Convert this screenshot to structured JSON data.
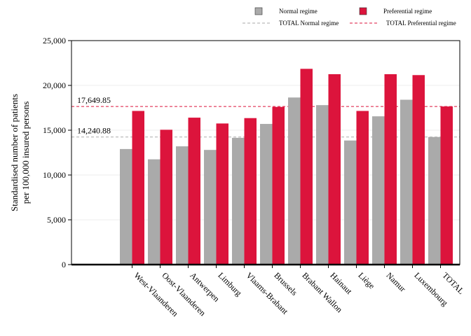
{
  "chart_data": {
    "type": "bar",
    "title": "",
    "ylabel": "Standardised number of patients\nper 100,000 insured persons",
    "xlabel": "",
    "ylim": [
      0,
      25000
    ],
    "yticks": [
      0,
      5000,
      10000,
      15000,
      20000,
      25000
    ],
    "ytick_labels": [
      "0",
      "5,000",
      "10,000",
      "15,000",
      "20,000",
      "25,000"
    ],
    "grid": "horizontal",
    "legend_position": "top-right",
    "categories": [
      "West-Vlaanderen",
      "Oost-Vlaanderen",
      "Antwerpen",
      "Limburg",
      "Vlaams-Brabant",
      "Brussels",
      "Brabant Wallon",
      "Hainaut",
      "Liège",
      "Namur",
      "Luxembourg",
      "TOTAL"
    ],
    "series": [
      {
        "name": "Normal regime",
        "color": "#aaaaaa",
        "values": [
          12900,
          11750,
          13200,
          12800,
          14150,
          15700,
          18650,
          17800,
          13850,
          16550,
          18400,
          14240.88
        ]
      },
      {
        "name": "Preferential regime",
        "color": "#dc143c",
        "values": [
          17150,
          15050,
          16400,
          15750,
          16350,
          17600,
          21850,
          21250,
          17150,
          21250,
          21150,
          17649.85
        ]
      }
    ],
    "reference_lines": [
      {
        "name": "TOTAL Normal regime",
        "value": 14240.88,
        "label": "14,240.88",
        "color": "#aaaaaa"
      },
      {
        "name": "TOTAL Preferential regime",
        "value": 17649.85,
        "label": "17,649.85",
        "color": "#dc143c"
      }
    ]
  }
}
